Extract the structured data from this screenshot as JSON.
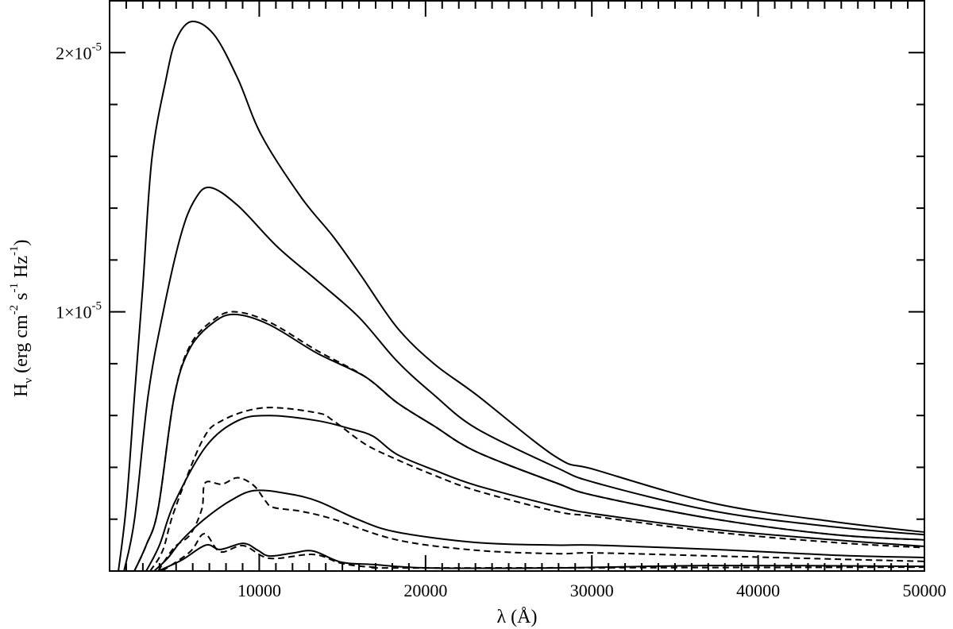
{
  "chart_data": {
    "type": "line",
    "title": "",
    "xlabel": "λ (Å)",
    "ylabel": "H_ν (erg cm^-2 s^-1 Hz^-1)",
    "xlim": [
      1000,
      50000
    ],
    "ylim": [
      0,
      2.2e-05
    ],
    "grid": false,
    "legend": null,
    "x_ticks": [
      {
        "value": 10000,
        "label": "10000"
      },
      {
        "value": 20000,
        "label": "20000"
      },
      {
        "value": 30000,
        "label": "30000"
      },
      {
        "value": 40000,
        "label": "40000"
      },
      {
        "value": 50000,
        "label": "50000"
      }
    ],
    "x_minor_step": 1000,
    "y_ticks": [
      {
        "value": 1e-05,
        "label_mantissa": "1×10",
        "label_exp": "-5"
      },
      {
        "value": 2e-05,
        "label_mantissa": "2×10",
        "label_exp": "-5"
      }
    ],
    "y_minor_step": 2e-06,
    "y_unit_scale": 1e-05,
    "series": [
      {
        "name": "curve-1",
        "style": "solid",
        "points": [
          [
            1530,
            0
          ],
          [
            2000,
            0.25
          ],
          [
            2490,
            0.67
          ],
          [
            3000,
            1.1
          ],
          [
            3540,
            1.59
          ],
          [
            4400,
            1.9
          ],
          [
            5000,
            2.05
          ],
          [
            5930,
            2.12
          ],
          [
            7270,
            2.07
          ],
          [
            8710,
            1.9
          ],
          [
            10140,
            1.68
          ],
          [
            12540,
            1.44
          ],
          [
            14450,
            1.29
          ],
          [
            16120,
            1.14
          ],
          [
            18280,
            0.94
          ],
          [
            20500,
            0.8
          ],
          [
            23060,
            0.68
          ],
          [
            27850,
            0.44
          ],
          [
            30240,
            0.39
          ],
          [
            37420,
            0.26
          ],
          [
            44590,
            0.19
          ],
          [
            50000,
            0.15
          ]
        ]
      },
      {
        "name": "curve-2",
        "style": "solid",
        "points": [
          [
            1870,
            0
          ],
          [
            2500,
            0.2
          ],
          [
            3300,
            0.67
          ],
          [
            4160,
            0.98
          ],
          [
            5260,
            1.29
          ],
          [
            6100,
            1.43
          ],
          [
            7030,
            1.48
          ],
          [
            8710,
            1.41
          ],
          [
            11100,
            1.25
          ],
          [
            13490,
            1.12
          ],
          [
            15980,
            0.98
          ],
          [
            18280,
            0.81
          ],
          [
            20500,
            0.68
          ],
          [
            23060,
            0.55
          ],
          [
            27850,
            0.4
          ],
          [
            30240,
            0.34
          ],
          [
            37420,
            0.23
          ],
          [
            44590,
            0.17
          ],
          [
            50000,
            0.14
          ]
        ]
      },
      {
        "name": "curve-3",
        "style": "solid",
        "points": [
          [
            2490,
            0
          ],
          [
            3200,
            0.1
          ],
          [
            3920,
            0.24
          ],
          [
            4880,
            0.67
          ],
          [
            5840,
            0.86
          ],
          [
            7270,
            0.96
          ],
          [
            8560,
            0.99
          ],
          [
            10620,
            0.95
          ],
          [
            13490,
            0.84
          ],
          [
            16360,
            0.75
          ],
          [
            18280,
            0.65
          ],
          [
            20500,
            0.56
          ],
          [
            23060,
            0.46
          ],
          [
            27850,
            0.34
          ],
          [
            30240,
            0.29
          ],
          [
            37420,
            0.2
          ],
          [
            44590,
            0.14
          ],
          [
            50000,
            0.12
          ]
        ]
      },
      {
        "name": "curve-3-dashed",
        "style": "dashed",
        "points": [
          [
            2490,
            0
          ],
          [
            3200,
            0.1
          ],
          [
            3920,
            0.24
          ],
          [
            4880,
            0.67
          ],
          [
            5840,
            0.87
          ],
          [
            7270,
            0.97
          ],
          [
            8560,
            1.0
          ],
          [
            10620,
            0.96
          ],
          [
            13490,
            0.85
          ],
          [
            16360,
            0.75
          ],
          [
            18280,
            0.65
          ],
          [
            20500,
            0.56
          ],
          [
            23060,
            0.46
          ],
          [
            27850,
            0.34
          ],
          [
            30240,
            0.29
          ],
          [
            37420,
            0.2
          ],
          [
            44590,
            0.14
          ],
          [
            50000,
            0.12
          ]
        ]
      },
      {
        "name": "curve-4",
        "style": "solid",
        "points": [
          [
            3200,
            0
          ],
          [
            4000,
            0.1
          ],
          [
            4880,
            0.26
          ],
          [
            6790,
            0.48
          ],
          [
            8710,
            0.58
          ],
          [
            10620,
            0.6
          ],
          [
            13490,
            0.58
          ],
          [
            15410,
            0.55
          ],
          [
            16840,
            0.52
          ],
          [
            18280,
            0.45
          ],
          [
            20500,
            0.39
          ],
          [
            23060,
            0.33
          ],
          [
            27850,
            0.25
          ],
          [
            30240,
            0.22
          ],
          [
            37420,
            0.16
          ],
          [
            44590,
            0.12
          ],
          [
            50000,
            0.095
          ]
        ]
      },
      {
        "name": "curve-4-dashed",
        "style": "dashed",
        "points": [
          [
            3440,
            0
          ],
          [
            4200,
            0.08
          ],
          [
            4880,
            0.23
          ],
          [
            6550,
            0.5
          ],
          [
            7750,
            0.58
          ],
          [
            10290,
            0.63
          ],
          [
            13490,
            0.61
          ],
          [
            14450,
            0.58
          ],
          [
            16360,
            0.49
          ],
          [
            18280,
            0.43
          ],
          [
            20500,
            0.37
          ],
          [
            23060,
            0.31
          ],
          [
            27850,
            0.23
          ],
          [
            30240,
            0.21
          ],
          [
            37420,
            0.15
          ],
          [
            44590,
            0.11
          ],
          [
            50000,
            0.09
          ]
        ]
      },
      {
        "name": "curve-5",
        "style": "solid",
        "points": [
          [
            3680,
            0
          ],
          [
            4500,
            0.05
          ],
          [
            5360,
            0.12
          ],
          [
            6700,
            0.2
          ],
          [
            8230,
            0.27
          ],
          [
            9670,
            0.31
          ],
          [
            11580,
            0.3
          ],
          [
            13490,
            0.27
          ],
          [
            15890,
            0.2
          ],
          [
            18280,
            0.15
          ],
          [
            23060,
            0.11
          ],
          [
            27850,
            0.1
          ],
          [
            30240,
            0.1
          ],
          [
            37420,
            0.083
          ],
          [
            44590,
            0.061
          ],
          [
            50000,
            0.052
          ]
        ]
      },
      {
        "name": "curve-5-dashed",
        "style": "dashed",
        "points": [
          [
            3920,
            0
          ],
          [
            4880,
            0.09
          ],
          [
            5840,
            0.14
          ],
          [
            6550,
            0.24
          ],
          [
            6750,
            0.34
          ],
          [
            7750,
            0.335
          ],
          [
            8710,
            0.36
          ],
          [
            9670,
            0.33
          ],
          [
            10380,
            0.27
          ],
          [
            10860,
            0.245
          ],
          [
            12540,
            0.23
          ],
          [
            14450,
            0.2
          ],
          [
            18280,
            0.12
          ],
          [
            23060,
            0.08
          ],
          [
            27850,
            0.067
          ],
          [
            30240,
            0.07
          ],
          [
            37420,
            0.058
          ],
          [
            44590,
            0.046
          ],
          [
            50000,
            0.037
          ]
        ]
      },
      {
        "name": "curve-6",
        "style": "solid",
        "points": [
          [
            3920,
            0
          ],
          [
            5360,
            0.043
          ],
          [
            6790,
            0.1
          ],
          [
            7650,
            0.083
          ],
          [
            9040,
            0.107
          ],
          [
            9910,
            0.08
          ],
          [
            10620,
            0.058
          ],
          [
            12060,
            0.07
          ],
          [
            13250,
            0.077
          ],
          [
            14930,
            0.034
          ],
          [
            16840,
            0.025
          ],
          [
            20200,
            0.012
          ],
          [
            27850,
            0.012
          ],
          [
            37420,
            0.021
          ],
          [
            50000,
            0.018
          ]
        ]
      },
      {
        "name": "curve-6-dashed",
        "style": "dashed",
        "points": [
          [
            4160,
            0
          ],
          [
            5840,
            0.074
          ],
          [
            6700,
            0.144
          ],
          [
            7650,
            0.074
          ],
          [
            9040,
            0.098
          ],
          [
            10620,
            0.049
          ],
          [
            13250,
            0.064
          ],
          [
            14930,
            0.03
          ],
          [
            16840,
            0.015
          ],
          [
            20200,
            0.012
          ],
          [
            50000,
            0.015
          ]
        ]
      }
    ]
  }
}
